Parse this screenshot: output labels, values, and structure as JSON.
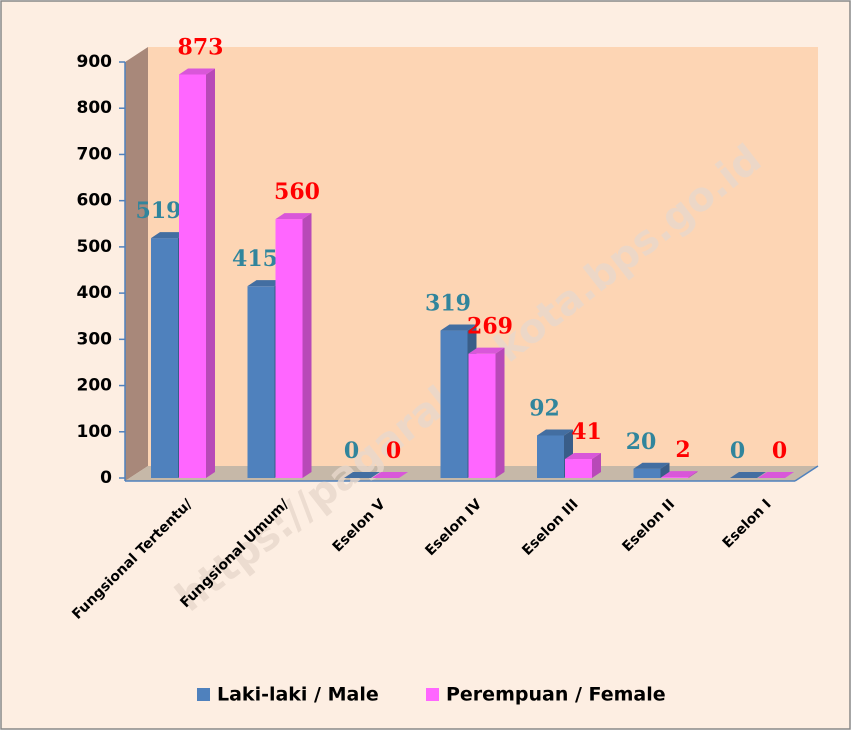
{
  "chart_data": {
    "type": "bar3d",
    "categories": [
      "Fungsional Tertentu/",
      "Fungsional Umum/",
      "Eselon V",
      "Eselon IV",
      "Eselon III",
      "Eselon II",
      "Eselon I"
    ],
    "series": [
      {
        "name": "Laki-laki / Male",
        "color": "#4f81bd",
        "label_color": "#31859c",
        "values": [
          519,
          415,
          0,
          319,
          92,
          20,
          0
        ]
      },
      {
        "name": "Perempuan / Female",
        "color": "#ff66ff",
        "label_color": "#ff0000",
        "values": [
          873,
          560,
          0,
          269,
          41,
          2,
          0
        ]
      }
    ],
    "ylim": [
      0,
      900
    ],
    "yticks": [
      0,
      100,
      200,
      300,
      400,
      500,
      600,
      700,
      800,
      900
    ],
    "legend": "bottom",
    "watermark": "https://pagaralamkota.bps.go.id"
  }
}
